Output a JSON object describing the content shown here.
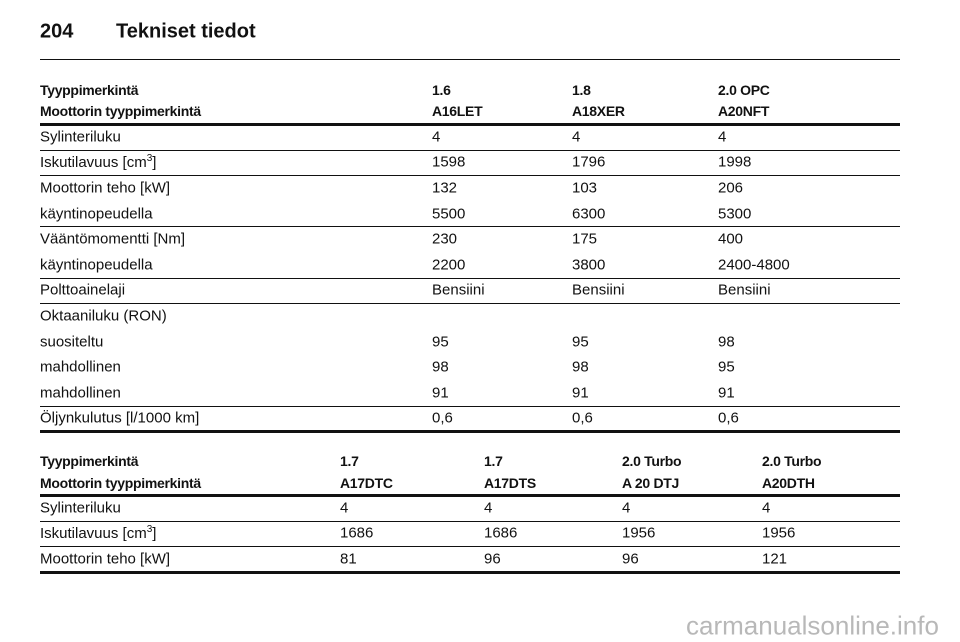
{
  "header": {
    "page_number": "204",
    "title": "Tekniset tiedot"
  },
  "tables": [
    {
      "header_rows": [
        [
          "Tyyppimerkintä",
          "1.6",
          "1.8",
          "2.0 OPC"
        ],
        [
          "Moottorin tyyppimerkintä",
          "A16LET",
          "A18XER",
          "A20NFT"
        ]
      ],
      "groups": [
        [
          [
            "Sylinteriluku",
            "4",
            "4",
            "4"
          ]
        ],
        [
          [
            {
              "text": "Iskutilavuus [cm",
              "sup": "3",
              "end": "]"
            },
            "1598",
            "1796",
            "1998"
          ]
        ],
        [
          [
            "Moottorin teho [kW]",
            "132",
            "103",
            "206"
          ],
          [
            "käyntinopeudella",
            "5500",
            "6300",
            "5300"
          ]
        ],
        [
          [
            "Vääntömomentti [Nm]",
            "230",
            "175",
            "400"
          ],
          [
            "käyntinopeudella",
            "2200",
            "3800",
            "2400-4800"
          ]
        ],
        [
          [
            "Polttoainelaji",
            "Bensiini",
            "Bensiini",
            "Bensiini"
          ]
        ],
        [
          [
            "Oktaaniluku (RON)"
          ],
          [
            "suositeltu",
            "95",
            "95",
            "98"
          ],
          [
            "mahdollinen",
            "98",
            "98",
            "95"
          ],
          [
            "mahdollinen",
            "91",
            "91",
            "91"
          ]
        ],
        [
          [
            "Öljynkulutus [l/1000 km]",
            "0,6",
            "0,6",
            "0,6"
          ]
        ]
      ]
    },
    {
      "header_rows": [
        [
          "Tyyppimerkintä",
          "1.7",
          "1.7",
          "2.0 Turbo",
          "2.0 Turbo"
        ],
        [
          "Moottorin tyyppimerkintä",
          "A17DTC",
          "A17DTS",
          "A 20 DTJ",
          "A20DTH"
        ]
      ],
      "groups": [
        [
          [
            "Sylinteriluku",
            "4",
            "4",
            "4",
            "4"
          ]
        ],
        [
          [
            {
              "text": "Iskutilavuus [cm",
              "sup": "3",
              "end": "]"
            },
            "1686",
            "1686",
            "1956",
            "1956"
          ]
        ],
        [
          [
            "Moottorin teho [kW]",
            "81",
            "96",
            "96",
            "121"
          ]
        ]
      ]
    }
  ],
  "watermark": "carmanualsonline.info"
}
